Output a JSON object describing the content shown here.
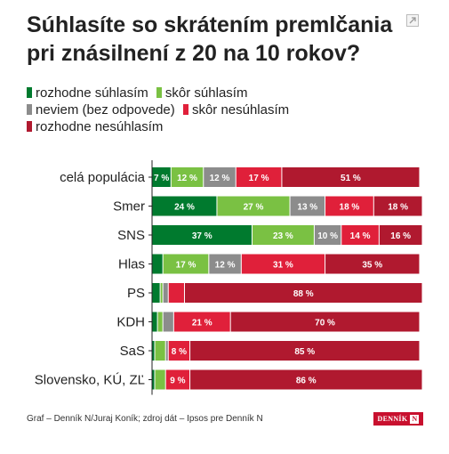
{
  "header": {
    "title": "Súhlasíte so skrátením premlčania pri znásilnení z 20 na 10 rokov?"
  },
  "icons": {
    "expand": "expand-icon"
  },
  "colors": {
    "strongly_agree": "#007a2e",
    "rather_agree": "#7ac143",
    "dont_know": "#8c8c8c",
    "rather_disagree": "#e0203a",
    "strongly_disagree": "#b0192f"
  },
  "chart_data": {
    "type": "bar",
    "orientation": "horizontal",
    "stacked": true,
    "title": "Súhlasíte so skrátením premlčania pri znásilnení z 20 na 10 rokov?",
    "legend_position": "top",
    "categories": [
      "celá populácia",
      "Smer",
      "SNS",
      "Hlas",
      "PS",
      "KDH",
      "SaS",
      "Slovensko, KÚ, ZĽ"
    ],
    "series": [
      {
        "name": "rozhodne súhlasím",
        "color": "#007a2e",
        "values": [
          7,
          24,
          37,
          4,
          3,
          2,
          1,
          1
        ]
      },
      {
        "name": "skôr súhlasím",
        "color": "#7ac143",
        "values": [
          12,
          27,
          23,
          17,
          1,
          2,
          4,
          4
        ]
      },
      {
        "name": "neviem (bez odpovede)",
        "color": "#8c8c8c",
        "values": [
          12,
          13,
          10,
          12,
          2,
          4,
          1,
          0
        ]
      },
      {
        "name": "skôr nesúhlasím",
        "color": "#e0203a",
        "values": [
          17,
          18,
          14,
          31,
          6,
          21,
          8,
          9
        ]
      },
      {
        "name": "rozhodne nesúhlasím",
        "color": "#b0192f",
        "values": [
          51,
          18,
          16,
          35,
          88,
          70,
          85,
          86
        ]
      }
    ],
    "xlim": [
      0,
      100
    ],
    "grid": false,
    "value_suffix": " %",
    "label_min": 7
  },
  "footer": {
    "source": "Graf – Denník N/Juraj Koník; zdroj dát – Ipsos pre Denník N",
    "logo_text": "DENNÍK",
    "logo_letter": "N"
  }
}
